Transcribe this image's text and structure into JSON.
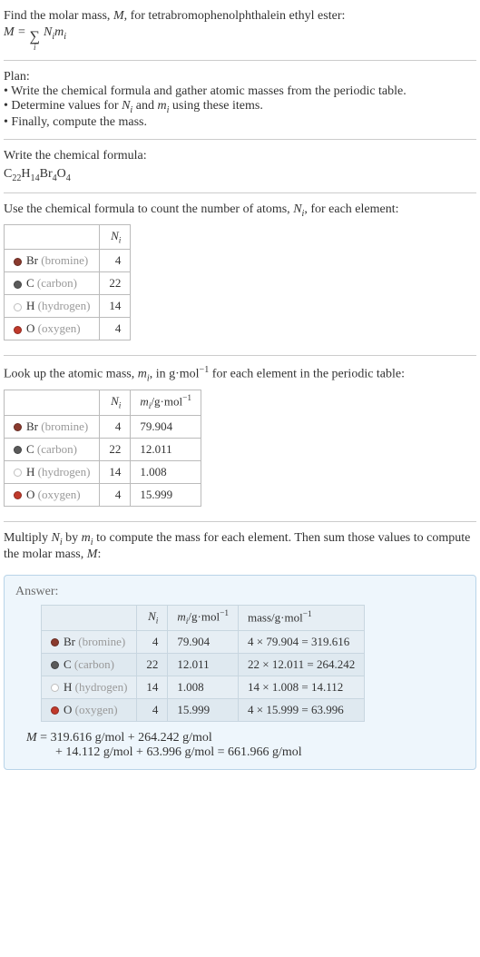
{
  "intro": {
    "line1_pre": "Find the molar mass, ",
    "line1_var": "M",
    "line1_post": ", for tetrabromophenolphthalein ethyl ester:",
    "eq_lhs": "M = ",
    "sigma_sub": "i",
    "eq_rhs_N": "N",
    "eq_rhs_i1": "i",
    "eq_rhs_m": "m",
    "eq_rhs_i2": "i"
  },
  "plan": {
    "title": "Plan:",
    "items": [
      "• Write the chemical formula and gather atomic masses from the periodic table.",
      "• Determine values for N_i and m_i using these items.",
      "• Finally, compute the mass."
    ],
    "item2_pre": "• Determine values for ",
    "item2_N": "N",
    "item2_i1": "i",
    "item2_and": " and ",
    "item2_m": "m",
    "item2_i2": "i",
    "item2_post": " using these items."
  },
  "chemformula": {
    "title": "Write the chemical formula:",
    "parts": [
      "C",
      "22",
      "H",
      "14",
      "Br",
      "4",
      "O",
      "4"
    ]
  },
  "count": {
    "text_pre": "Use the chemical formula to count the number of atoms, ",
    "var": "N",
    "sub": "i",
    "text_post": ", for each element:",
    "header_N": "N",
    "header_i": "i",
    "rows": [
      {
        "color": "#8a3a2e",
        "sym": "Br",
        "name": "(bromine)",
        "n": "4"
      },
      {
        "color": "#5a5a5a",
        "sym": "C",
        "name": "(carbon)",
        "n": "22"
      },
      {
        "color": "#ffffff",
        "sym": "H",
        "name": "(hydrogen)",
        "n": "14"
      },
      {
        "color": "#c0392b",
        "sym": "O",
        "name": "(oxygen)",
        "n": "4"
      }
    ]
  },
  "lookup": {
    "text_pre": "Look up the atomic mass, ",
    "var": "m",
    "sub": "i",
    "text_mid": ", in g·mol",
    "exp": "−1",
    "text_post": " for each element in the periodic table:",
    "header_N": "N",
    "header_Ni": "i",
    "header_m": "m",
    "header_mi": "i",
    "header_unit_pre": "/g·mol",
    "header_unit_exp": "−1",
    "rows": [
      {
        "color": "#8a3a2e",
        "sym": "Br",
        "name": "(bromine)",
        "n": "4",
        "m": "79.904"
      },
      {
        "color": "#5a5a5a",
        "sym": "C",
        "name": "(carbon)",
        "n": "22",
        "m": "12.011"
      },
      {
        "color": "#ffffff",
        "sym": "H",
        "name": "(hydrogen)",
        "n": "14",
        "m": "1.008"
      },
      {
        "color": "#c0392b",
        "sym": "O",
        "name": "(oxygen)",
        "n": "4",
        "m": "15.999"
      }
    ]
  },
  "multiply": {
    "pre": "Multiply ",
    "N": "N",
    "Ni": "i",
    "by": " by ",
    "m": "m",
    "mi": "i",
    "mid": " to compute the mass for each element. Then sum those values to compute the molar mass, ",
    "M": "M",
    "post": ":"
  },
  "answer": {
    "title": "Answer:",
    "header_N": "N",
    "header_Ni": "i",
    "header_m": "m",
    "header_mi": "i",
    "header_munit_pre": "/g·mol",
    "header_munit_exp": "−1",
    "header_mass_pre": "mass/g·mol",
    "header_mass_exp": "−1",
    "rows": [
      {
        "color": "#8a3a2e",
        "sym": "Br",
        "name": "(bromine)",
        "n": "4",
        "m": "79.904",
        "calc": "4 × 79.904 = 319.616"
      },
      {
        "color": "#5a5a5a",
        "sym": "C",
        "name": "(carbon)",
        "n": "22",
        "m": "12.011",
        "calc": "22 × 12.011 = 264.242"
      },
      {
        "color": "#ffffff",
        "sym": "H",
        "name": "(hydrogen)",
        "n": "14",
        "m": "1.008",
        "calc": "14 × 1.008 = 14.112"
      },
      {
        "color": "#c0392b",
        "sym": "O",
        "name": "(oxygen)",
        "n": "4",
        "m": "15.999",
        "calc": "4 × 15.999 = 63.996"
      }
    ],
    "eq_line1_pre": "M",
    "eq_line1": " = 319.616 g/mol + 264.242 g/mol",
    "eq_line2": "+ 14.112 g/mol + 63.996 g/mol = 661.966 g/mol"
  }
}
